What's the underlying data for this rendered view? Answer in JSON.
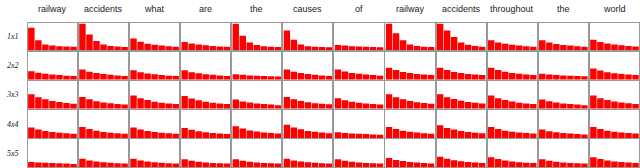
{
  "chart_data": [
    {
      "type": "bar",
      "title": "railway",
      "ylabel": "1x1",
      "values": [
        0.85,
        0.38,
        0.22,
        0.18,
        0.16,
        0.15,
        0.14
      ],
      "color": "#ff0000",
      "ylim": [
        0,
        1.05
      ],
      "tick_labels": false,
      "grid": false
    },
    {
      "type": "bar",
      "title": "accidents",
      "values": [
        1.0,
        0.6,
        0.35,
        0.22,
        0.17,
        0.15,
        0.13
      ],
      "color": "#ff0000",
      "ylim": [
        0,
        1.05
      ],
      "tick_labels": false,
      "grid": false
    },
    {
      "type": "bar",
      "title": "what",
      "values": [
        0.45,
        0.33,
        0.25,
        0.21,
        0.18,
        0.16,
        0.14
      ],
      "color": "#ff0000",
      "ylim": [
        0,
        1.05
      ],
      "tick_labels": false,
      "grid": false
    },
    {
      "type": "bar",
      "title": "are",
      "values": [
        0.32,
        0.26,
        0.22,
        0.19,
        0.17,
        0.15,
        0.14
      ],
      "color": "#ff0000",
      "ylim": [
        0,
        1.05
      ],
      "tick_labels": false,
      "grid": false
    },
    {
      "type": "bar",
      "title": "the",
      "values": [
        1.0,
        0.55,
        0.3,
        0.2,
        0.16,
        0.14,
        0.13
      ],
      "color": "#ff0000",
      "ylim": [
        0,
        1.05
      ],
      "tick_labels": false,
      "grid": false
    },
    {
      "type": "bar",
      "title": "causes",
      "values": [
        0.75,
        0.4,
        0.22,
        0.16,
        0.14,
        0.13,
        0.12
      ],
      "color": "#ff0000",
      "ylim": [
        0,
        1.05
      ],
      "tick_labels": false,
      "grid": false
    },
    {
      "type": "bar",
      "title": "of",
      "values": [
        0.2,
        0.18,
        0.16,
        0.15,
        0.14,
        0.13,
        0.12
      ],
      "color": "#ff0000",
      "ylim": [
        0,
        1.05
      ],
      "tick_labels": false,
      "grid": false
    },
    {
      "type": "bar",
      "title": "railway",
      "values": [
        1.0,
        0.65,
        0.38,
        0.22,
        0.17,
        0.14,
        0.13
      ],
      "color": "#ff0000",
      "ylim": [
        0,
        1.05
      ],
      "tick_labels": false,
      "grid": false
    },
    {
      "type": "bar",
      "title": "accidents",
      "values": [
        1.0,
        0.75,
        0.5,
        0.3,
        0.21,
        0.17,
        0.14
      ],
      "color": "#ff0000",
      "ylim": [
        0,
        1.05
      ],
      "tick_labels": false,
      "grid": false
    },
    {
      "type": "bar",
      "title": "throughout",
      "values": [
        0.38,
        0.3,
        0.25,
        0.21,
        0.18,
        0.16,
        0.14
      ],
      "color": "#ff0000",
      "ylim": [
        0,
        1.05
      ],
      "tick_labels": false,
      "grid": false
    },
    {
      "type": "bar",
      "title": "the",
      "values": [
        0.38,
        0.3,
        0.24,
        0.2,
        0.18,
        0.16,
        0.14
      ],
      "color": "#ff0000",
      "ylim": [
        0,
        1.05
      ],
      "tick_labels": false,
      "grid": false
    },
    {
      "type": "bar",
      "title": "world",
      "values": [
        0.4,
        0.32,
        0.26,
        0.22,
        0.19,
        0.17,
        0.15
      ],
      "color": "#ff0000",
      "ylim": [
        0,
        1.05
      ],
      "tick_labels": false,
      "grid": false
    },
    {
      "type": "bar",
      "ylabel": "2x2",
      "values": [
        0.32,
        0.26,
        0.22,
        0.19,
        0.17,
        0.15,
        0.14
      ],
      "color": "#ff0000",
      "ylim": [
        0,
        1.05
      ],
      "tick_labels": false,
      "grid": false
    },
    {
      "type": "bar",
      "values": [
        0.38,
        0.3,
        0.25,
        0.21,
        0.18,
        0.16,
        0.14
      ],
      "color": "#ff0000",
      "ylim": [
        0,
        1.05
      ],
      "tick_labels": false,
      "grid": false
    },
    {
      "type": "bar",
      "values": [
        0.35,
        0.28,
        0.23,
        0.2,
        0.17,
        0.15,
        0.14
      ],
      "color": "#ff0000",
      "ylim": [
        0,
        1.05
      ],
      "tick_labels": false,
      "grid": false
    },
    {
      "type": "bar",
      "values": [
        0.35,
        0.28,
        0.24,
        0.2,
        0.18,
        0.16,
        0.14
      ],
      "color": "#ff0000",
      "ylim": [
        0,
        1.05
      ],
      "tick_labels": false,
      "grid": false
    },
    {
      "type": "bar",
      "values": [
        0.2,
        0.18,
        0.16,
        0.15,
        0.14,
        0.13,
        0.12
      ],
      "color": "#ff0000",
      "ylim": [
        0,
        1.05
      ],
      "tick_labels": false,
      "grid": false
    },
    {
      "type": "bar",
      "values": [
        0.38,
        0.3,
        0.25,
        0.21,
        0.18,
        0.16,
        0.14
      ],
      "color": "#ff0000",
      "ylim": [
        0,
        1.05
      ],
      "tick_labels": false,
      "grid": false
    },
    {
      "type": "bar",
      "values": [
        0.38,
        0.31,
        0.25,
        0.22,
        0.19,
        0.17,
        0.15
      ],
      "color": "#ff0000",
      "ylim": [
        0,
        1.05
      ],
      "tick_labels": false,
      "grid": false
    },
    {
      "type": "bar",
      "values": [
        0.45,
        0.36,
        0.29,
        0.25,
        0.21,
        0.19,
        0.17
      ],
      "color": "#ff0000",
      "ylim": [
        0,
        1.05
      ],
      "tick_labels": false,
      "grid": false
    },
    {
      "type": "bar",
      "values": [
        0.45,
        0.36,
        0.29,
        0.25,
        0.21,
        0.19,
        0.17
      ],
      "color": "#ff0000",
      "ylim": [
        0,
        1.05
      ],
      "tick_labels": false,
      "grid": false
    },
    {
      "type": "bar",
      "values": [
        0.45,
        0.36,
        0.3,
        0.25,
        0.22,
        0.19,
        0.17
      ],
      "color": "#ff0000",
      "ylim": [
        0,
        1.05
      ],
      "tick_labels": false,
      "grid": false
    },
    {
      "type": "bar",
      "values": [
        0.22,
        0.19,
        0.17,
        0.16,
        0.15,
        0.14,
        0.13
      ],
      "color": "#ff0000",
      "ylim": [
        0,
        1.05
      ],
      "tick_labels": false,
      "grid": false
    },
    {
      "type": "bar",
      "values": [
        0.42,
        0.34,
        0.28,
        0.24,
        0.21,
        0.19,
        0.17
      ],
      "color": "#ff0000",
      "ylim": [
        0,
        1.05
      ],
      "tick_labels": false,
      "grid": false
    },
    {
      "type": "bar",
      "ylabel": "3x3",
      "values": [
        0.55,
        0.44,
        0.36,
        0.3,
        0.26,
        0.22,
        0.19
      ],
      "color": "#ff0000",
      "ylim": [
        0,
        1.05
      ],
      "tick_labels": false,
      "grid": false
    },
    {
      "type": "bar",
      "values": [
        0.45,
        0.36,
        0.29,
        0.24,
        0.21,
        0.18,
        0.16
      ],
      "color": "#ff0000",
      "ylim": [
        0,
        1.05
      ],
      "tick_labels": false,
      "grid": false
    },
    {
      "type": "bar",
      "values": [
        0.5,
        0.4,
        0.33,
        0.27,
        0.23,
        0.2,
        0.18
      ],
      "color": "#ff0000",
      "ylim": [
        0,
        1.05
      ],
      "tick_labels": false,
      "grid": false
    },
    {
      "type": "bar",
      "values": [
        0.48,
        0.39,
        0.32,
        0.27,
        0.23,
        0.2,
        0.18
      ],
      "color": "#ff0000",
      "ylim": [
        0,
        1.05
      ],
      "tick_labels": false,
      "grid": false
    },
    {
      "type": "bar",
      "values": [
        0.35,
        0.28,
        0.24,
        0.2,
        0.18,
        0.16,
        0.14
      ],
      "color": "#ff0000",
      "ylim": [
        0,
        1.05
      ],
      "tick_labels": false,
      "grid": false
    },
    {
      "type": "bar",
      "values": [
        0.45,
        0.36,
        0.3,
        0.25,
        0.21,
        0.19,
        0.17
      ],
      "color": "#ff0000",
      "ylim": [
        0,
        1.05
      ],
      "tick_labels": false,
      "grid": false
    },
    {
      "type": "bar",
      "values": [
        0.4,
        0.32,
        0.27,
        0.23,
        0.2,
        0.18,
        0.16
      ],
      "color": "#ff0000",
      "ylim": [
        0,
        1.05
      ],
      "tick_labels": false,
      "grid": false
    },
    {
      "type": "bar",
      "values": [
        0.55,
        0.44,
        0.36,
        0.3,
        0.25,
        0.22,
        0.19
      ],
      "color": "#ff0000",
      "ylim": [
        0,
        1.05
      ],
      "tick_labels": false,
      "grid": false
    },
    {
      "type": "bar",
      "values": [
        0.55,
        0.44,
        0.37,
        0.31,
        0.26,
        0.23,
        0.2
      ],
      "color": "#ff0000",
      "ylim": [
        0,
        1.05
      ],
      "tick_labels": false,
      "grid": false
    },
    {
      "type": "bar",
      "values": [
        0.5,
        0.4,
        0.33,
        0.28,
        0.23,
        0.2,
        0.18
      ],
      "color": "#ff0000",
      "ylim": [
        0,
        1.05
      ],
      "tick_labels": false,
      "grid": false
    },
    {
      "type": "bar",
      "values": [
        0.35,
        0.29,
        0.24,
        0.2,
        0.18,
        0.16,
        0.14
      ],
      "color": "#ff0000",
      "ylim": [
        0,
        1.05
      ],
      "tick_labels": false,
      "grid": false
    },
    {
      "type": "bar",
      "values": [
        0.5,
        0.4,
        0.33,
        0.28,
        0.24,
        0.21,
        0.18
      ],
      "color": "#ff0000",
      "ylim": [
        0,
        1.05
      ],
      "tick_labels": false,
      "grid": false
    },
    {
      "type": "bar",
      "ylabel": "4x4",
      "values": [
        0.4,
        0.32,
        0.27,
        0.23,
        0.2,
        0.18,
        0.16
      ],
      "color": "#ff0000",
      "ylim": [
        0,
        1.05
      ],
      "tick_labels": false,
      "grid": false
    },
    {
      "type": "bar",
      "values": [
        0.42,
        0.34,
        0.28,
        0.23,
        0.2,
        0.18,
        0.16
      ],
      "color": "#ff0000",
      "ylim": [
        0,
        1.05
      ],
      "tick_labels": false,
      "grid": false
    },
    {
      "type": "bar",
      "values": [
        0.4,
        0.32,
        0.27,
        0.23,
        0.2,
        0.18,
        0.16
      ],
      "color": "#ff0000",
      "ylim": [
        0,
        1.05
      ],
      "tick_labels": false,
      "grid": false
    },
    {
      "type": "bar",
      "values": [
        0.38,
        0.31,
        0.26,
        0.22,
        0.19,
        0.17,
        0.15
      ],
      "color": "#ff0000",
      "ylim": [
        0,
        1.05
      ],
      "tick_labels": false,
      "grid": false
    },
    {
      "type": "bar",
      "values": [
        0.45,
        0.36,
        0.29,
        0.25,
        0.21,
        0.19,
        0.17
      ],
      "color": "#ff0000",
      "ylim": [
        0,
        1.05
      ],
      "tick_labels": false,
      "grid": false
    },
    {
      "type": "bar",
      "values": [
        0.5,
        0.4,
        0.33,
        0.27,
        0.24,
        0.21,
        0.18
      ],
      "color": "#ff0000",
      "ylim": [
        0,
        1.05
      ],
      "tick_labels": false,
      "grid": false
    },
    {
      "type": "bar",
      "values": [
        0.22,
        0.19,
        0.17,
        0.16,
        0.15,
        0.14,
        0.13
      ],
      "color": "#ff0000",
      "ylim": [
        0,
        1.05
      ],
      "tick_labels": false,
      "grid": false
    },
    {
      "type": "bar",
      "values": [
        0.42,
        0.34,
        0.28,
        0.24,
        0.21,
        0.18,
        0.16
      ],
      "color": "#ff0000",
      "ylim": [
        0,
        1.05
      ],
      "tick_labels": false,
      "grid": false
    },
    {
      "type": "bar",
      "values": [
        0.48,
        0.38,
        0.32,
        0.27,
        0.23,
        0.2,
        0.18
      ],
      "color": "#ff0000",
      "ylim": [
        0,
        1.05
      ],
      "tick_labels": false,
      "grid": false
    },
    {
      "type": "bar",
      "values": [
        0.42,
        0.34,
        0.28,
        0.24,
        0.21,
        0.19,
        0.17
      ],
      "color": "#ff0000",
      "ylim": [
        0,
        1.05
      ],
      "tick_labels": false,
      "grid": false
    },
    {
      "type": "bar",
      "values": [
        0.32,
        0.26,
        0.22,
        0.19,
        0.17,
        0.15,
        0.14
      ],
      "color": "#ff0000",
      "ylim": [
        0,
        1.05
      ],
      "tick_labels": false,
      "grid": false
    },
    {
      "type": "bar",
      "values": [
        0.42,
        0.34,
        0.28,
        0.24,
        0.21,
        0.19,
        0.17
      ],
      "color": "#ff0000",
      "ylim": [
        0,
        1.05
      ],
      "tick_labels": false,
      "grid": false
    },
    {
      "type": "bar",
      "ylabel": "5x5",
      "values": [
        0.2,
        0.18,
        0.17,
        0.16,
        0.15,
        0.14,
        0.13
      ],
      "color": "#ff0000",
      "ylim": [
        0,
        1.05
      ],
      "tick_labels": false,
      "grid": false
    },
    {
      "type": "bar",
      "values": [
        0.32,
        0.26,
        0.22,
        0.19,
        0.17,
        0.15,
        0.14
      ],
      "color": "#ff0000",
      "ylim": [
        0,
        1.05
      ],
      "tick_labels": false,
      "grid": false
    },
    {
      "type": "bar",
      "values": [
        0.32,
        0.26,
        0.22,
        0.19,
        0.17,
        0.15,
        0.14
      ],
      "color": "#ff0000",
      "ylim": [
        0,
        1.05
      ],
      "tick_labels": false,
      "grid": false
    },
    {
      "type": "bar",
      "values": [
        0.3,
        0.25,
        0.21,
        0.18,
        0.16,
        0.15,
        0.14
      ],
      "color": "#ff0000",
      "ylim": [
        0,
        1.05
      ],
      "tick_labels": false,
      "grid": false
    },
    {
      "type": "bar",
      "values": [
        0.3,
        0.25,
        0.21,
        0.18,
        0.16,
        0.15,
        0.14
      ],
      "color": "#ff0000",
      "ylim": [
        0,
        1.05
      ],
      "tick_labels": false,
      "grid": false
    },
    {
      "type": "bar",
      "values": [
        0.32,
        0.26,
        0.22,
        0.19,
        0.17,
        0.15,
        0.14
      ],
      "color": "#ff0000",
      "ylim": [
        0,
        1.05
      ],
      "tick_labels": false,
      "grid": false
    },
    {
      "type": "bar",
      "values": [
        0.3,
        0.25,
        0.21,
        0.18,
        0.16,
        0.15,
        0.14
      ],
      "color": "#ff0000",
      "ylim": [
        0,
        1.05
      ],
      "tick_labels": false,
      "grid": false
    },
    {
      "type": "bar",
      "values": [
        0.35,
        0.28,
        0.24,
        0.2,
        0.18,
        0.16,
        0.14
      ],
      "color": "#ff0000",
      "ylim": [
        0,
        1.05
      ],
      "tick_labels": false,
      "grid": false
    },
    {
      "type": "bar",
      "values": [
        0.4,
        0.32,
        0.27,
        0.23,
        0.2,
        0.18,
        0.16
      ],
      "color": "#ff0000",
      "ylim": [
        0,
        1.05
      ],
      "tick_labels": false,
      "grid": false
    },
    {
      "type": "bar",
      "values": [
        0.38,
        0.31,
        0.26,
        0.22,
        0.19,
        0.17,
        0.16
      ],
      "color": "#ff0000",
      "ylim": [
        0,
        1.05
      ],
      "tick_labels": false,
      "grid": false
    },
    {
      "type": "bar",
      "values": [
        0.3,
        0.25,
        0.21,
        0.18,
        0.16,
        0.15,
        0.14
      ],
      "color": "#ff0000",
      "ylim": [
        0,
        1.05
      ],
      "tick_labels": false,
      "grid": false
    },
    {
      "type": "bar",
      "values": [
        0.38,
        0.31,
        0.26,
        0.22,
        0.2,
        0.18,
        0.16
      ],
      "color": "#ff0000",
      "ylim": [
        0,
        1.05
      ],
      "tick_labels": false,
      "grid": false
    }
  ]
}
